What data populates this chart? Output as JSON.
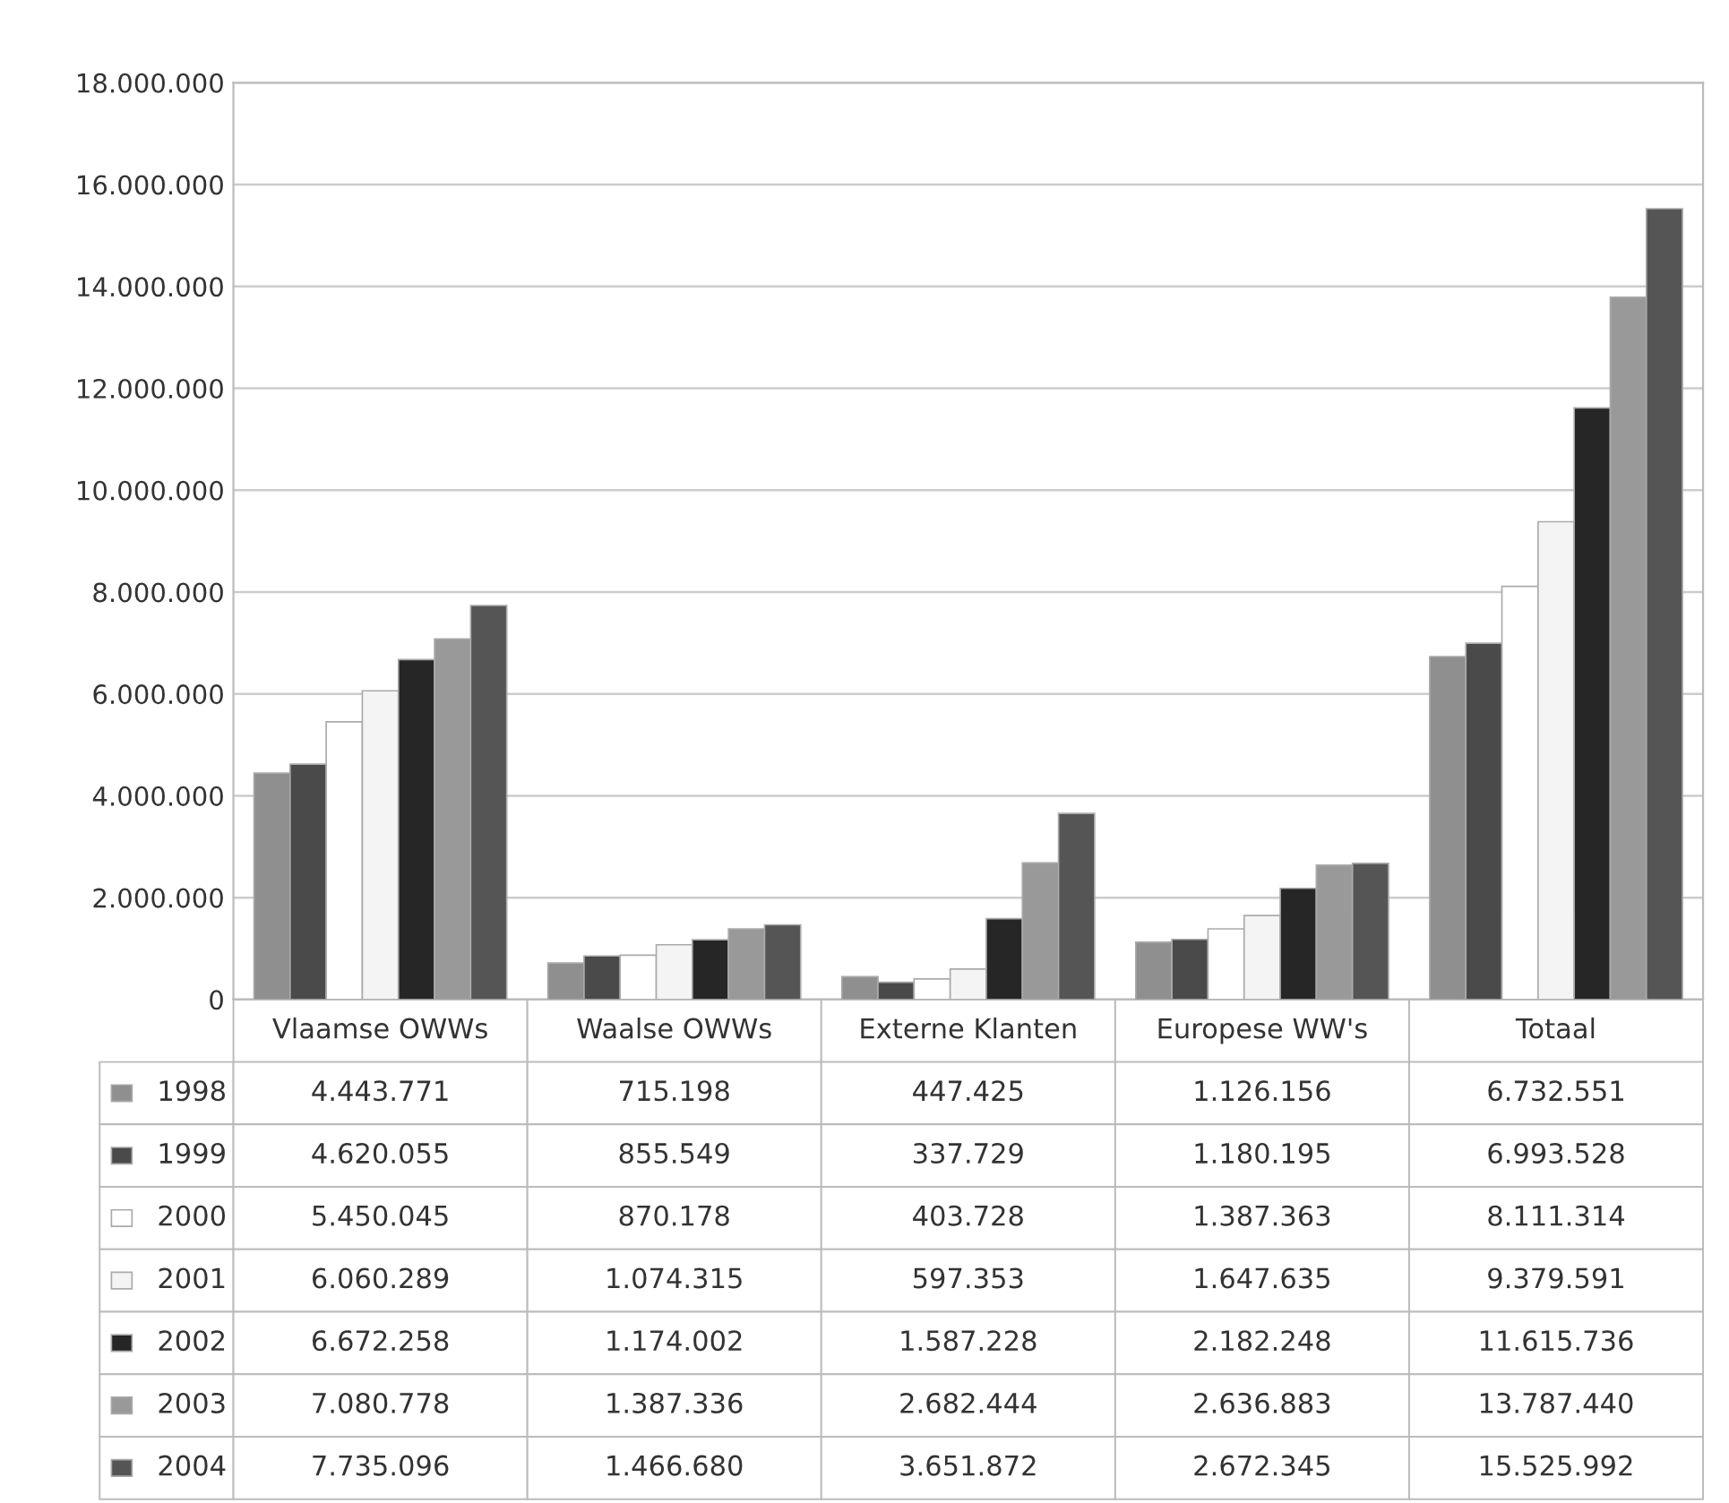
{
  "chart_data": {
    "type": "bar",
    "categories": [
      "Vlaamse OWWs",
      "Waalse OWWs",
      "Externe Klanten",
      "Europese WW's",
      "Totaal"
    ],
    "series": [
      {
        "name": "1998",
        "color": "#8f8f8f",
        "values": [
          4443771,
          715198,
          447425,
          1126156,
          6732551
        ],
        "value_labels": [
          "4.443.771",
          "715.198",
          "447.425",
          "1.126.156",
          "6.732.551"
        ]
      },
      {
        "name": "1999",
        "color": "#4a4a4a",
        "values": [
          4620055,
          855549,
          337729,
          1180195,
          6993528
        ],
        "value_labels": [
          "4.620.055",
          "855.549",
          "337.729",
          "1.180.195",
          "6.993.528"
        ]
      },
      {
        "name": "2000",
        "color": "#ffffff",
        "values": [
          5450045,
          870178,
          403728,
          1387363,
          8111314
        ],
        "value_labels": [
          "5.450.045",
          "870.178",
          "403.728",
          "1.387.363",
          "8.111.314"
        ]
      },
      {
        "name": "2001",
        "color": "#f4f4f4",
        "values": [
          6060289,
          1074315,
          597353,
          1647635,
          9379591
        ],
        "value_labels": [
          "6.060.289",
          "1.074.315",
          "597.353",
          "1.647.635",
          "9.379.591"
        ]
      },
      {
        "name": "2002",
        "color": "#262626",
        "values": [
          6672258,
          1174002,
          1587228,
          2182248,
          11615736
        ],
        "value_labels": [
          "6.672.258",
          "1.174.002",
          "1.587.228",
          "2.182.248",
          "11.615.736"
        ]
      },
      {
        "name": "2003",
        "color": "#999999",
        "values": [
          7080778,
          1387336,
          2682444,
          2636883,
          13787440
        ],
        "value_labels": [
          "7.080.778",
          "1.387.336",
          "2.682.444",
          "2.636.883",
          "13.787.440"
        ]
      },
      {
        "name": "2004",
        "color": "#555555",
        "values": [
          7735096,
          1466680,
          3651872,
          2672345,
          15525992
        ],
        "value_labels": [
          "7.735.096",
          "1.466.680",
          "3.651.872",
          "2.672.345",
          "15.525.992"
        ]
      }
    ],
    "ylim": [
      0,
      18000000
    ],
    "yticks": [
      0,
      {
        "value": 2000000,
        "label": "2.000.000"
      },
      {
        "value": 4000000,
        "label": "4.000.000"
      },
      {
        "value": 6000000,
        "label": "6.000.000"
      },
      {
        "value": 8000000,
        "label": "8.000.000"
      },
      {
        "value": 10000000,
        "label": "10.000.000"
      },
      {
        "value": 12000000,
        "label": "12.000.000"
      },
      {
        "value": 14000000,
        "label": "14.000.000"
      },
      {
        "value": 16000000,
        "label": "16.000.000"
      },
      {
        "value": 18000000,
        "label": "18.000.000"
      }
    ],
    "grid": "y",
    "legend": "bottom"
  }
}
